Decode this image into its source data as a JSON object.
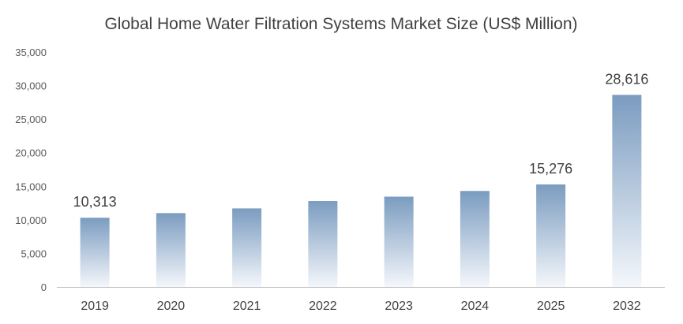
{
  "chart_data": {
    "type": "bar",
    "title": "Global Home Water Filtration Systems Market Size (US$ Million)",
    "categories": [
      "2019",
      "2020",
      "2021",
      "2022",
      "2023",
      "2024",
      "2025",
      "2032"
    ],
    "values": [
      10313,
      11000,
      11700,
      12800,
      13450,
      14300,
      15276,
      28616
    ],
    "data_labels": [
      "10,313",
      "",
      "",
      "",
      "",
      "",
      "15,276",
      "28,616"
    ],
    "ylim": [
      0,
      35000
    ],
    "yticks": [
      "0",
      "5,000",
      "10,000",
      "15,000",
      "20,000",
      "25,000",
      "30,000",
      "35,000"
    ],
    "grid": false,
    "legend": "none",
    "colors": {
      "bar_top": "#7b9cc0",
      "bar_bottom": "#f4f7fb",
      "axis": "#bfbfbf"
    }
  }
}
